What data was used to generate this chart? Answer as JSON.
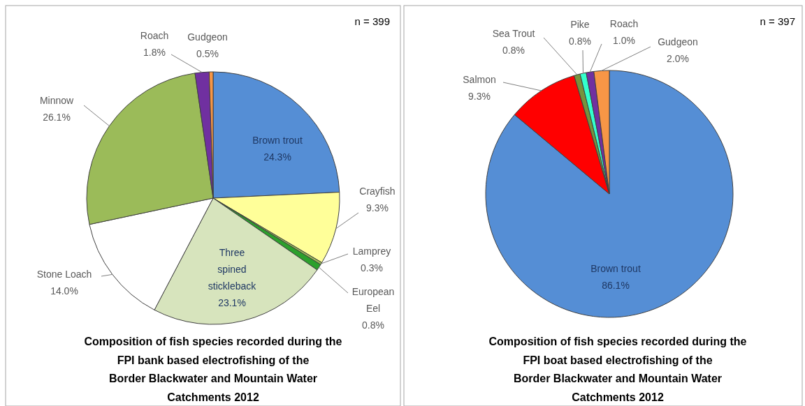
{
  "chart_data": [
    {
      "type": "pie",
      "title": "Composition of fish species recorded during  the\nFPI bank based electrofishing of the\nBorder Blackwater and Mountain Water\nCatchments 2012",
      "annotations": [
        "n = 399"
      ],
      "categories": [
        "Brown trout",
        "Crayfish",
        "Lamprey",
        "European\nEel",
        "Three\nspined\nstickleback",
        "Stone Loach",
        "Minnow",
        "Roach",
        "Gudgeon"
      ],
      "values": [
        24.3,
        9.3,
        0.3,
        0.8,
        23.1,
        14.0,
        26.1,
        1.8,
        0.5
      ],
      "value_labels": [
        "24.3%",
        "9.3%",
        "0.3%",
        "0.8%",
        "23.1%",
        "14.0%",
        "26.1%",
        "1.8%",
        "0.5%"
      ],
      "colors": [
        "#558ed5",
        "#ffff99",
        "#9bbb59",
        "#2ca02c",
        "#d7e4bd",
        "#ffffff",
        "#9bbb59",
        "#7030a0",
        "#f79646"
      ]
    },
    {
      "type": "pie",
      "title": "Composition of fish species recorded during  the\nFPI boat based electrofishing of the\nBorder Blackwater and Mountain Water\nCatchments 2012",
      "annotations": [
        "n = 397"
      ],
      "categories": [
        "Brown trout",
        "Salmon",
        "Sea Trout",
        "Pike",
        "Roach",
        "Gudgeon"
      ],
      "values": [
        86.1,
        9.3,
        0.8,
        0.8,
        1.0,
        2.0
      ],
      "value_labels": [
        "86.1%",
        "9.3%",
        "0.8%",
        "0.8%",
        "1.0%",
        "2.0%"
      ],
      "colors": [
        "#558ed5",
        "#ff0000",
        "#77933c",
        "#33ffcc",
        "#7030a0",
        "#f79646"
      ]
    }
  ]
}
